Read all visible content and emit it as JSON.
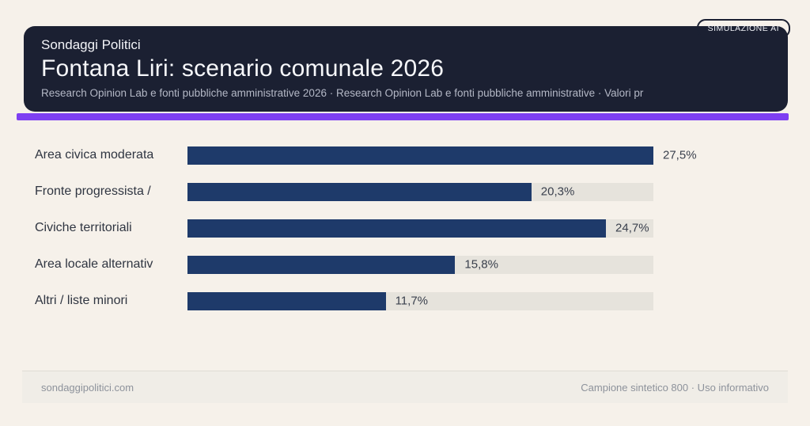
{
  "badge": {
    "label": "SIMULAZIONE AI"
  },
  "header": {
    "kicker": "Sondaggi Politici",
    "title": "Fontana Liri: scenario comunale 2026",
    "subtitle": "Research Opinion Lab e fonti pubbliche amministrative 2026 · Research Opinion Lab e fonti pubbliche amministrative · Valori pr"
  },
  "colors": {
    "page_background": "#f6f1ea",
    "header_background": "#1b2032",
    "accent_purple": "#7e3ff2",
    "bar_fill": "#1e3a6a",
    "bar_track": "#e6e3dc"
  },
  "chart_data": {
    "type": "bar",
    "orientation": "horizontal",
    "categories": [
      "Area civica moderata",
      "Fronte progressista /",
      "Civiche territoriali",
      "Area locale alternativ",
      "Altri / liste minori"
    ],
    "values": [
      27.5,
      20.3,
      24.7,
      15.8,
      11.7
    ],
    "value_labels": [
      "27,5%",
      "20,3%",
      "24,7%",
      "15,8%",
      "11,7%"
    ],
    "max_value": 27.5,
    "unit": "%",
    "grid": false,
    "legend": false,
    "note": "bars scaled relative to max value; value label placed right after bar end"
  },
  "footer": {
    "left": "sondaggipolitici.com",
    "right": "Campione sintetico 800 · Uso informativo"
  }
}
